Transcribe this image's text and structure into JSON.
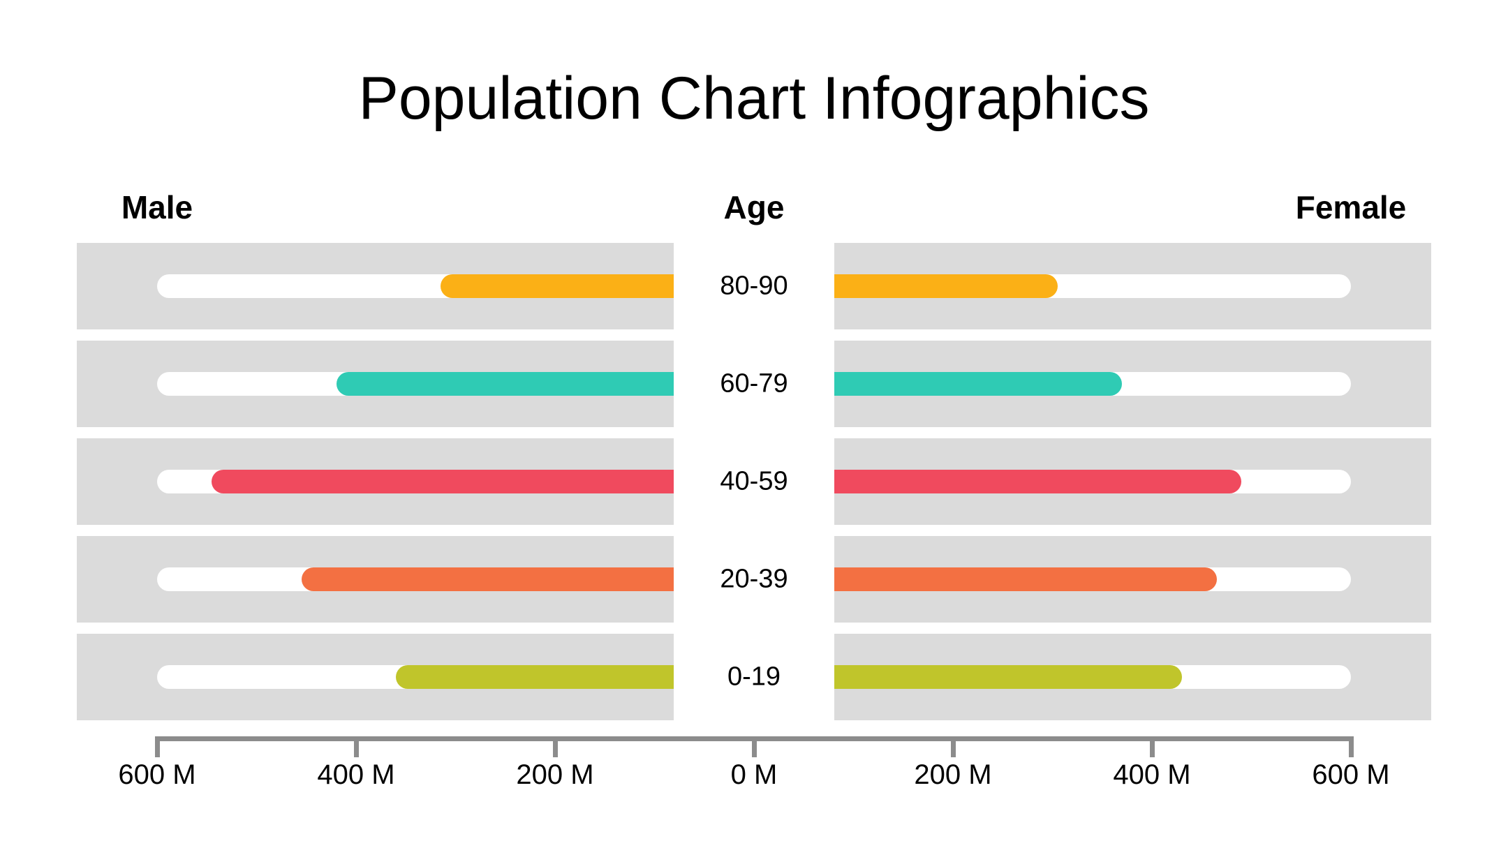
{
  "title": "Population Chart Infographics",
  "headers": {
    "male": "Male",
    "age": "Age",
    "female": "Female"
  },
  "colors": {
    "background": "#ffffff",
    "band_grey": "#dbdbdb",
    "track_white": "#ffffff",
    "axis_grey": "#8c8c8c",
    "text_black": "#000000",
    "row_colors": [
      "#fbb016",
      "#2fcbb4",
      "#f04a5e",
      "#f37042",
      "#c0c52b"
    ]
  },
  "chart_data": {
    "type": "bar",
    "subtype": "population-pyramid",
    "title": "Population Chart Infographics",
    "unit": "millions of people",
    "categories": [
      "80-90",
      "60-79",
      "40-59",
      "20-39",
      "0-19"
    ],
    "series": [
      {
        "name": "Male",
        "side": "left",
        "values": [
          315,
          420,
          545,
          455,
          360
        ]
      },
      {
        "name": "Female",
        "side": "right",
        "values": [
          305,
          370,
          490,
          465,
          430
        ]
      }
    ],
    "row_colors": [
      "#fbb016",
      "#2fcbb4",
      "#f04a5e",
      "#f37042",
      "#c0c52b"
    ],
    "axis": {
      "label_left": "Male",
      "label_center": "Age",
      "label_right": "Female",
      "tick_values": [
        600,
        400,
        200,
        0,
        200,
        400,
        600
      ],
      "tick_labels": [
        "600 M",
        "400 M",
        "200 M",
        "0 M",
        "200 M",
        "400 M",
        "600 M"
      ],
      "max": 600
    },
    "xlim": [
      -600,
      600
    ],
    "grid": false,
    "legend": "none"
  }
}
